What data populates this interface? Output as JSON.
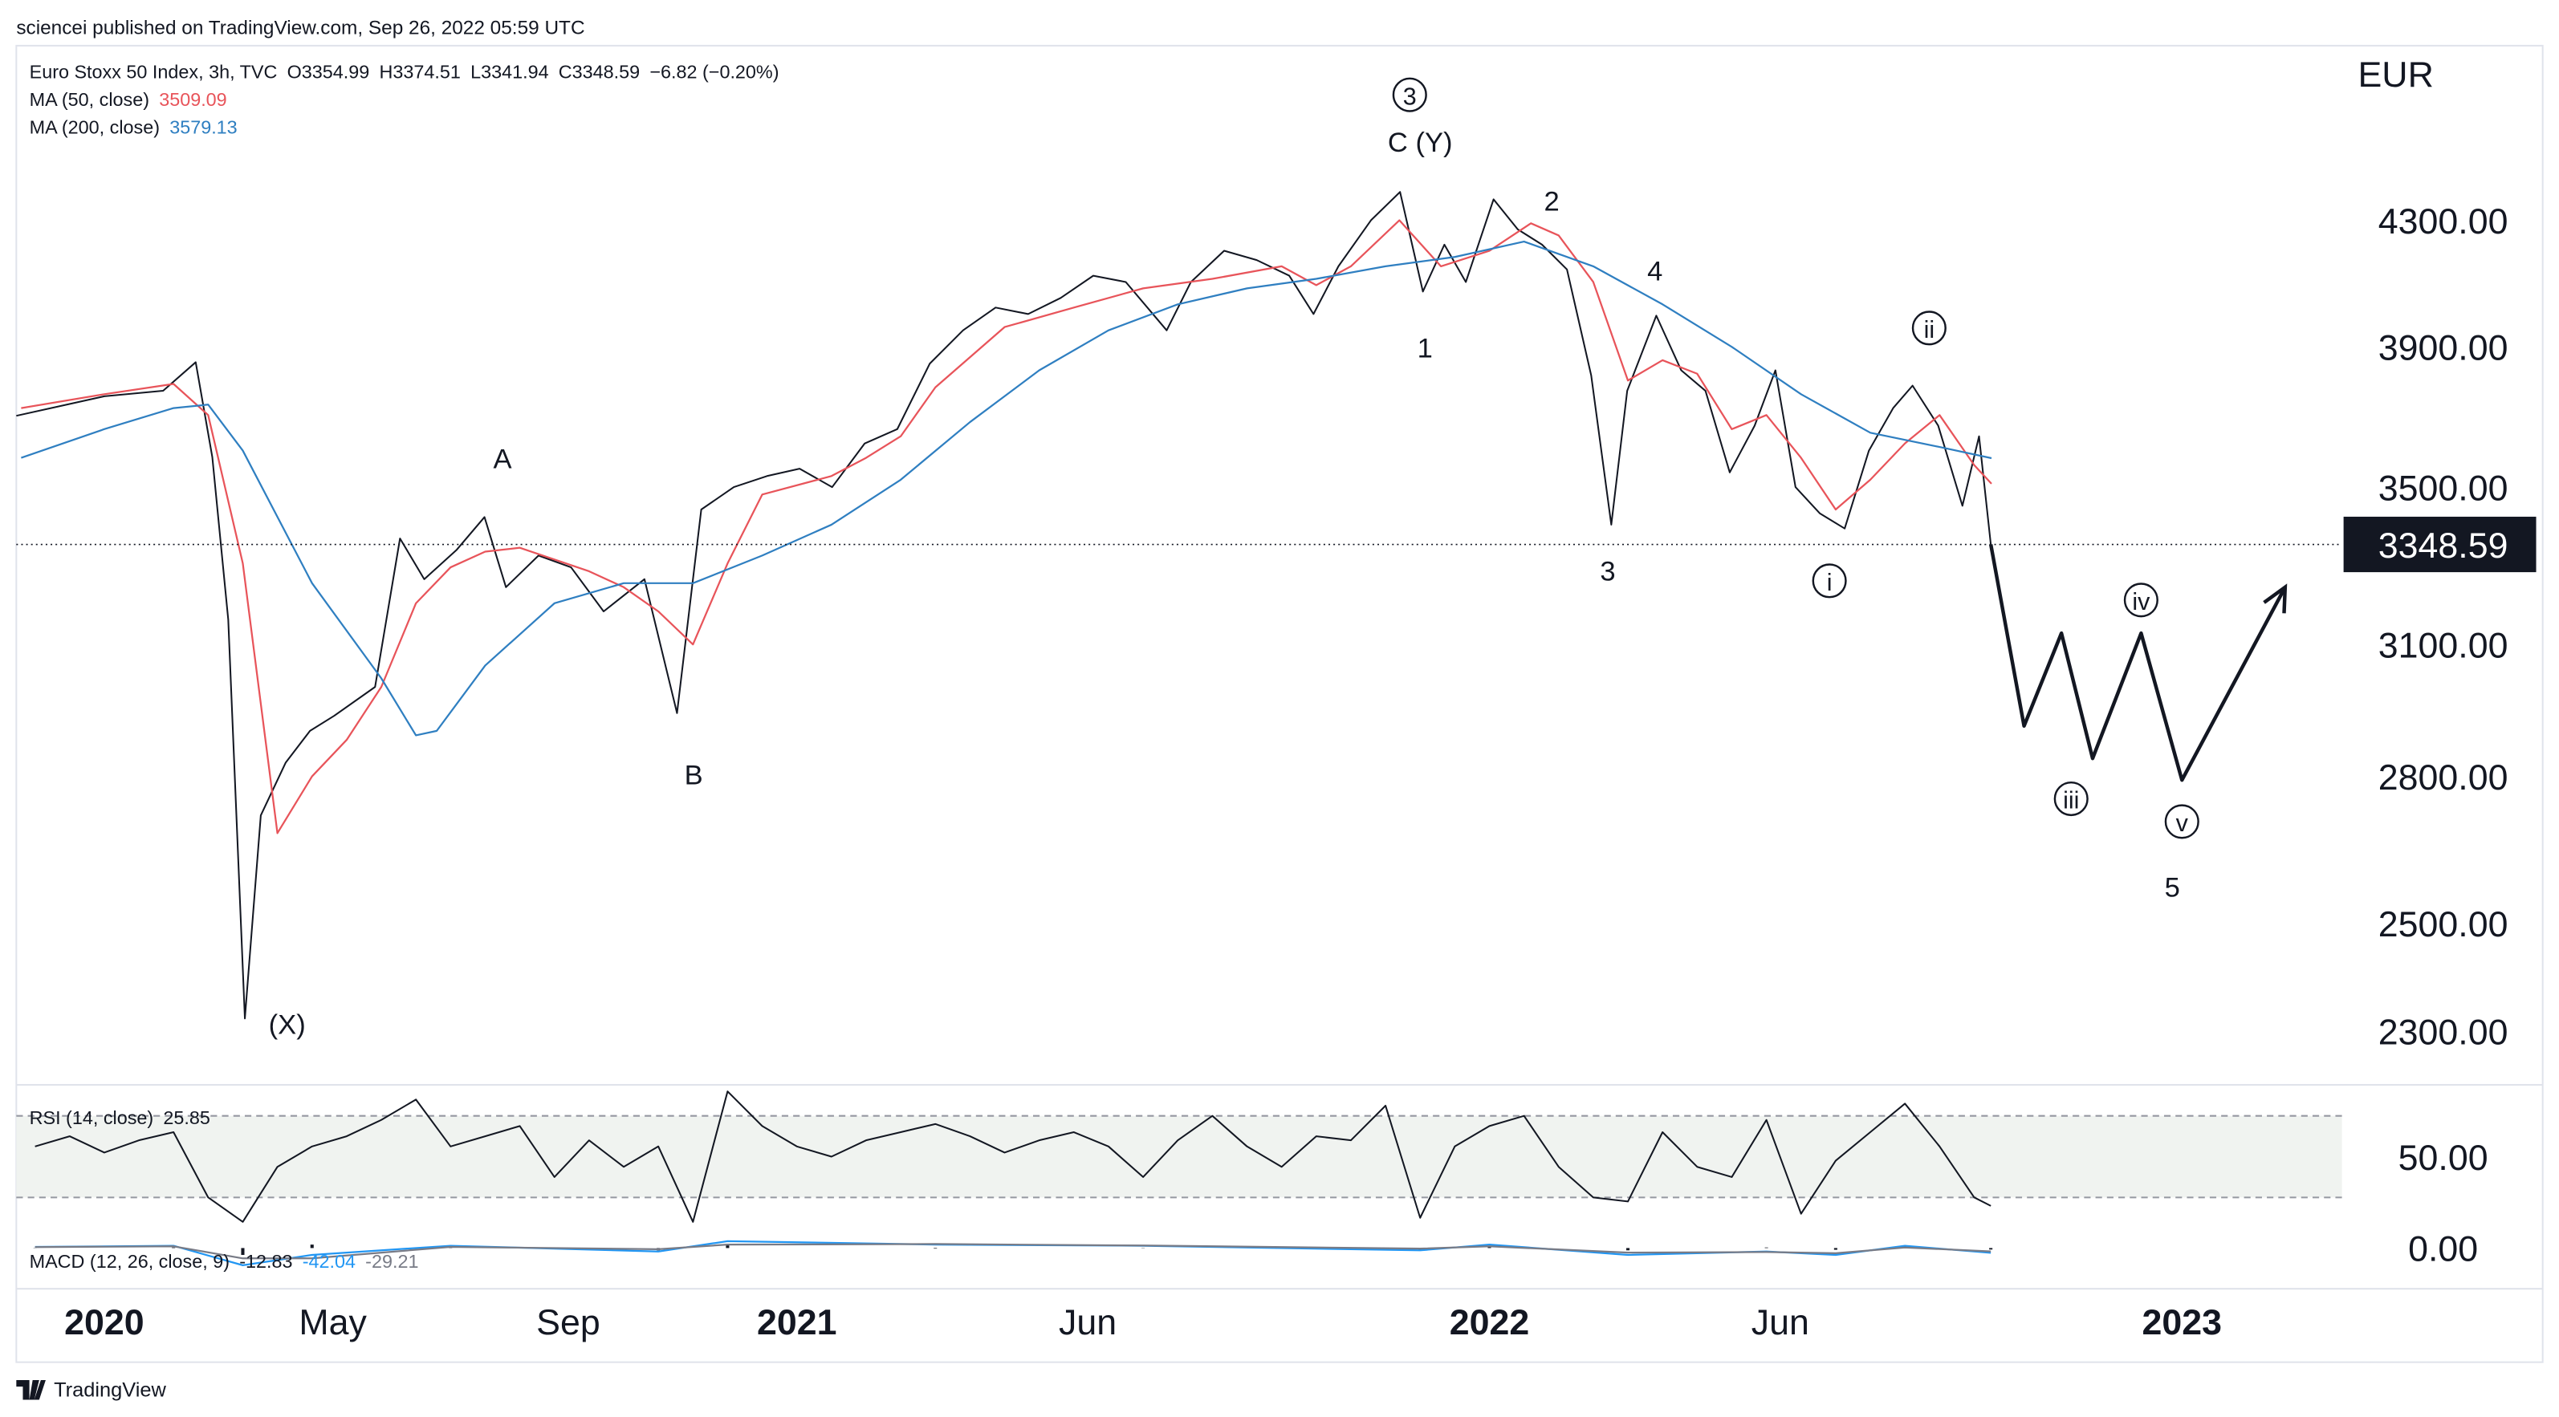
{
  "header": {
    "published": "sciencei published on TradingView.com, Sep 26, 2022 05:59 UTC",
    "brand": "TradingView"
  },
  "chart_data": [
    {
      "type": "line",
      "title": "Euro Stoxx 50 Index, 3h, TVC",
      "ohlc": [
        "O3354.99",
        "H3374.51",
        "L3341.94",
        "C3348.59",
        "−6.82 (−0.20%)"
      ],
      "currency": "EUR",
      "log_scale": true,
      "grid": false,
      "xlim": [
        2019.873,
        2023.231
      ],
      "ylim": [
        2207,
        4920
      ],
      "xticks": [
        {
          "value": 2020,
          "label": "2020"
        },
        {
          "value": 2020.33,
          "label": "May"
        },
        {
          "value": 2020.67,
          "label": "Sep"
        },
        {
          "value": 2021,
          "label": "2021"
        },
        {
          "value": 2021.42,
          "label": "Jun"
        },
        {
          "value": 2022,
          "label": "2022"
        },
        {
          "value": 2022.42,
          "label": "Jun"
        },
        {
          "value": 2023,
          "label": "2023"
        }
      ],
      "yticks": [
        {
          "value": 2300,
          "label": "2300.00"
        },
        {
          "value": 2500,
          "label": "2500.00"
        },
        {
          "value": 2800,
          "label": "2800.00"
        },
        {
          "value": 3100,
          "label": "3100.00"
        },
        {
          "value": 3500,
          "label": "3500.00"
        },
        {
          "value": 3900,
          "label": "3900.00"
        },
        {
          "value": 4300,
          "label": "4300.00"
        }
      ],
      "series": [
        {
          "color": "#131722",
          "x": [
            2019.873,
            2020.0,
            2020.085,
            2020.132,
            2020.156,
            2020.179,
            2020.203,
            2020.226,
            2020.262,
            2020.297,
            2020.332,
            2020.391,
            2020.427,
            2020.462,
            2020.509,
            2020.549,
            2020.58,
            2020.627,
            2020.674,
            2020.721,
            2020.78,
            2020.827,
            2020.862,
            2020.909,
            2020.957,
            2021.004,
            2021.051,
            2021.098,
            2021.145,
            2021.192,
            2021.24,
            2021.287,
            2021.334,
            2021.381,
            2021.428,
            2021.475,
            2021.534,
            2021.569,
            2021.617,
            2021.664,
            2021.711,
            2021.746,
            2021.782,
            2021.829,
            2021.871,
            2021.904,
            2021.935,
            2021.966,
            2022.006,
            2022.041,
            2022.076,
            2022.112,
            2022.147,
            2022.176,
            2022.199,
            2022.241,
            2022.277,
            2022.312,
            2022.347,
            2022.383,
            2022.413,
            2022.442,
            2022.477,
            2022.513,
            2022.548,
            2022.583,
            2022.611,
            2022.648,
            2022.683,
            2022.707,
            2022.724
          ],
          "values": [
            3698,
            3754,
            3770,
            3854,
            3582,
            3160,
            2323,
            2717,
            2830,
            2900,
            2934,
            3000,
            3364,
            3260,
            3335,
            3420,
            3240,
            3320,
            3290,
            3180,
            3260,
            2940,
            3440,
            3500,
            3530,
            3550,
            3500,
            3620,
            3660,
            3850,
            3950,
            4020,
            4000,
            4050,
            4120,
            4100,
            3950,
            4100,
            4200,
            4170,
            4120,
            4000,
            4150,
            4300,
            4395,
            4070,
            4220,
            4100,
            4370,
            4270,
            4220,
            4140,
            3815,
            3400,
            3770,
            3995,
            3830,
            3770,
            3540,
            3670,
            3830,
            3500,
            3430,
            3390,
            3600,
            3720,
            3785,
            3670,
            3450,
            3640,
            3348.59
          ]
        },
        {
          "name": "MA (50, close)",
          "color": "#e8545a",
          "x": [
            2019.88,
            2020.0,
            2020.1,
            2020.15,
            2020.2,
            2020.25,
            2020.3,
            2020.35,
            2020.4,
            2020.45,
            2020.5,
            2020.55,
            2020.6,
            2020.7,
            2020.75,
            2020.8,
            2020.85,
            2020.9,
            2020.95,
            2021.05,
            2021.1,
            2021.15,
            2021.2,
            2021.3,
            2021.4,
            2021.5,
            2021.6,
            2021.7,
            2021.75,
            2021.8,
            2021.87,
            2021.93,
            2022.0,
            2022.06,
            2022.1,
            2022.15,
            2022.2,
            2022.25,
            2022.3,
            2022.35,
            2022.4,
            2022.45,
            2022.5,
            2022.55,
            2022.6,
            2022.65,
            2022.7,
            2022.725
          ],
          "values": [
            3720,
            3760,
            3790,
            3700,
            3300,
            2680,
            2800,
            2880,
            3000,
            3200,
            3290,
            3330,
            3340,
            3280,
            3240,
            3180,
            3100,
            3300,
            3480,
            3530,
            3580,
            3640,
            3780,
            3960,
            4020,
            4080,
            4110,
            4150,
            4090,
            4150,
            4300,
            4150,
            4200,
            4290,
            4250,
            4100,
            3800,
            3860,
            3820,
            3660,
            3700,
            3580,
            3440,
            3520,
            3620,
            3700,
            3560,
            3509.09
          ]
        },
        {
          "name": "MA (200, close)",
          "color": "#2f7fc1",
          "x": [
            2019.88,
            2020.0,
            2020.1,
            2020.15,
            2020.2,
            2020.3,
            2020.4,
            2020.45,
            2020.48,
            2020.55,
            2020.65,
            2020.75,
            2020.85,
            2020.95,
            2021.05,
            2021.15,
            2021.25,
            2021.35,
            2021.45,
            2021.55,
            2021.65,
            2021.75,
            2021.85,
            2021.95,
            2022.05,
            2022.15,
            2022.25,
            2022.35,
            2022.45,
            2022.55,
            2022.65,
            2022.725
          ],
          "values": [
            3580,
            3660,
            3720,
            3730,
            3600,
            3250,
            3020,
            2890,
            2900,
            3050,
            3200,
            3250,
            3250,
            3320,
            3400,
            3520,
            3680,
            3830,
            3950,
            4030,
            4080,
            4110,
            4150,
            4180,
            4230,
            4150,
            4030,
            3900,
            3760,
            3650,
            3610,
            3579.13
          ]
        },
        {
          "color": "#131722",
          "projection": true,
          "x": [
            2022.724,
            2022.772,
            2022.826,
            2022.871,
            2022.941,
            2023.0,
            2023.149
          ],
          "values": [
            3348.59,
            2911,
            3127,
            2839,
            3127,
            2792,
            3240
          ]
        }
      ],
      "annotations": [
        {
          "text": "3",
          "circled": true,
          "x": 2021.885,
          "y": 4737
        },
        {
          "text": "C (Y)",
          "circled": false,
          "x": 2021.9,
          "y": 4568
        },
        {
          "text": "2",
          "circled": false,
          "x": 2022.09,
          "y": 4365
        },
        {
          "text": "4",
          "circled": false,
          "x": 2022.239,
          "y": 4136
        },
        {
          "text": "1",
          "circled": false,
          "x": 2021.907,
          "y": 3898
        },
        {
          "text": "3",
          "circled": false,
          "x": 2022.171,
          "y": 3281
        },
        {
          "text": "ii",
          "circled": true,
          "x": 2022.635,
          "y": 3957
        },
        {
          "text": "i",
          "circled": true,
          "x": 2022.491,
          "y": 3256
        },
        {
          "text": "iv",
          "circled": true,
          "x": 2022.941,
          "y": 3208
        },
        {
          "text": "iii",
          "circled": true,
          "x": 2022.84,
          "y": 2752
        },
        {
          "text": "v",
          "circled": true,
          "x": 2023.0,
          "y": 2704
        },
        {
          "text": "5",
          "circled": false,
          "x": 2022.986,
          "y": 2571
        },
        {
          "text": "A",
          "circled": false,
          "x": 2020.575,
          "y": 3578
        },
        {
          "text": "B",
          "circled": false,
          "x": 2020.851,
          "y": 2804
        },
        {
          "text": "(X)",
          "circled": false,
          "x": 2020.264,
          "y": 2313
        }
      ]
    },
    {
      "type": "line",
      "title": "RSI (14, close)",
      "xlim": [
        2019.873,
        2023.231
      ],
      "ylim": [
        10.8,
        82.8
      ],
      "yticks": [
        {
          "value": 50,
          "label": "50.00"
        }
      ],
      "band": [
        30,
        70
      ],
      "series": [
        {
          "name": "RSI",
          "color": "#131722",
          "x": [
            2019.9,
            2019.95,
            2020.0,
            2020.05,
            2020.1,
            2020.15,
            2020.2,
            2020.25,
            2020.3,
            2020.35,
            2020.4,
            2020.45,
            2020.5,
            2020.55,
            2020.6,
            2020.65,
            2020.7,
            2020.75,
            2020.8,
            2020.85,
            2020.9,
            2020.95,
            2021.0,
            2021.05,
            2021.1,
            2021.15,
            2021.2,
            2021.25,
            2021.3,
            2021.35,
            2021.4,
            2021.45,
            2021.5,
            2021.55,
            2021.6,
            2021.65,
            2021.7,
            2021.75,
            2021.8,
            2021.85,
            2021.9,
            2021.95,
            2022.0,
            2022.05,
            2022.1,
            2022.15,
            2022.2,
            2022.25,
            2022.3,
            2022.35,
            2022.4,
            2022.45,
            2022.5,
            2022.55,
            2022.6,
            2022.65,
            2022.7,
            2022.724
          ],
          "values": [
            55,
            60,
            52,
            58,
            62,
            30,
            18,
            45,
            55,
            60,
            68,
            78,
            55,
            60,
            65,
            40,
            58,
            45,
            55,
            18,
            82,
            65,
            55,
            50,
            58,
            62,
            66,
            60,
            52,
            58,
            62,
            55,
            40,
            58,
            70,
            55,
            45,
            60,
            58,
            75,
            20,
            55,
            65,
            70,
            45,
            30,
            28,
            62,
            45,
            40,
            68,
            22,
            48,
            62,
            76,
            55,
            30,
            25.85
          ]
        }
      ]
    },
    {
      "type": "line",
      "title": "MACD (12, 26, close, 9)",
      "xlim": [
        2019.873,
        2023.231
      ],
      "ylim": [
        -355,
        100
      ],
      "yticks": [
        {
          "value": 0,
          "label": "0.00"
        }
      ],
      "series": [
        {
          "name": "Histogram",
          "color": "#131722",
          "bars": true,
          "x": [
            2019.9,
            2020.1,
            2020.2,
            2020.3,
            2020.5,
            2020.8,
            2020.9,
            2021.2,
            2021.5,
            2021.9,
            2022.0,
            2022.2,
            2022.4,
            2022.5,
            2022.6,
            2022.724
          ],
          "values": [
            2,
            5,
            -60,
            30,
            10,
            -20,
            30,
            -5,
            -2,
            -15,
            15,
            -20,
            5,
            -15,
            15,
            -12.83
          ]
        },
        {
          "name": "MACD",
          "color": "#2196f3",
          "x": [
            2019.9,
            2020.1,
            2020.2,
            2020.3,
            2020.5,
            2020.8,
            2020.9,
            2021.2,
            2021.5,
            2021.9,
            2022.0,
            2022.2,
            2022.4,
            2022.5,
            2022.6,
            2022.724
          ],
          "values": [
            10,
            20,
            -150,
            -60,
            20,
            -30,
            60,
            30,
            20,
            -20,
            30,
            -60,
            -30,
            -60,
            20,
            -42.04
          ]
        },
        {
          "name": "Signal",
          "color": "#787b86",
          "x": [
            2019.9,
            2020.1,
            2020.2,
            2020.3,
            2020.5,
            2020.8,
            2020.9,
            2021.2,
            2021.5,
            2021.9,
            2022.0,
            2022.2,
            2022.4,
            2022.5,
            2022.6,
            2022.724
          ],
          "values": [
            8,
            15,
            -90,
            -90,
            10,
            -10,
            30,
            35,
            22,
            -5,
            15,
            -40,
            -35,
            -45,
            5,
            -29.21
          ]
        }
      ]
    }
  ]
}
